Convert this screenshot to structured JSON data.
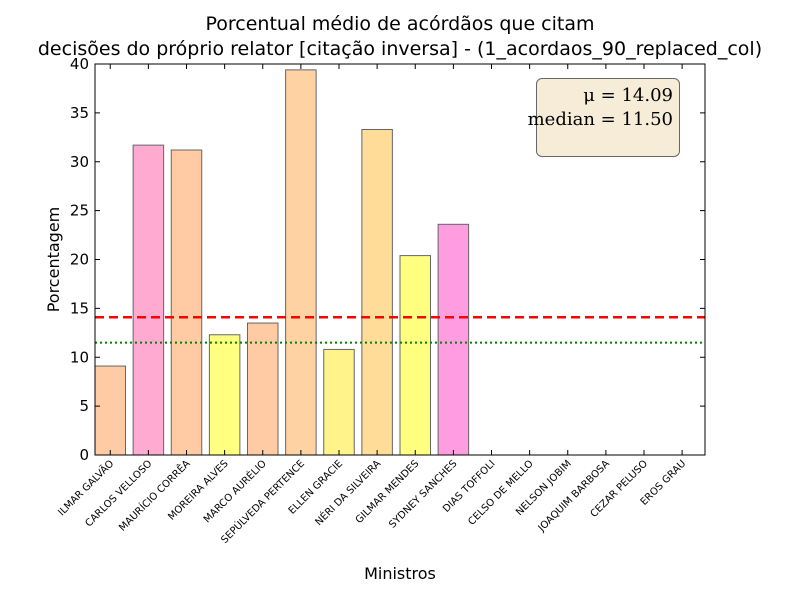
{
  "chart_data": {
    "type": "bar",
    "title_line1": "Porcentual médio de acórdãos que citam",
    "title_line2": "decisões do próprio relator [citação inversa] - (1_acordaos_90_replaced_col)",
    "xlabel": "Ministros",
    "ylabel": "Porcentagem",
    "ylim": [
      0,
      40
    ],
    "yticks": [
      0,
      5,
      10,
      15,
      20,
      25,
      30,
      35,
      40
    ],
    "categories": [
      "ILMAR GALVÃO",
      "CARLOS VELLOSO",
      "MAURÍCIO CORRÊA",
      "MOREIRA ALVES",
      "MARCO AURÉLIO",
      "SEPÚLVEDA PERTENCE",
      "ELLEN GRACIE",
      "NÉRI DA SILVEIRA",
      "GILMAR MENDES",
      "SYDNEY SANCHES",
      "DIAS TOFFOLI",
      "CELSO DE MELLO",
      "NELSON JOBIM",
      "JOAQUIM BARBOSA",
      "CEZAR PELUSO",
      "EROS GRAU"
    ],
    "values": [
      9.1,
      31.7,
      31.2,
      12.3,
      13.5,
      39.4,
      10.8,
      33.3,
      20.4,
      23.6,
      0,
      0,
      0,
      0,
      0,
      0
    ],
    "bar_colors": [
      "#ffcba4",
      "#ffaad0",
      "#ffcba4",
      "#ffff80",
      "#ffcba4",
      "#ffd2a4",
      "#fff38a",
      "#ffdd99",
      "#ffff80",
      "#ff9de0",
      "#ffffff",
      "#ffffff",
      "#ffffff",
      "#ffffff",
      "#ffffff",
      "#ffffff"
    ],
    "mean": 14.09,
    "median": 11.5,
    "mean_color": "#ff0000",
    "median_color": "#008000",
    "stats_box": {
      "mean_text": "μ = 14.09",
      "median_text": "median = 11.50",
      "background": "#f7ecd7",
      "placement": "top-right"
    },
    "grid": false
  }
}
